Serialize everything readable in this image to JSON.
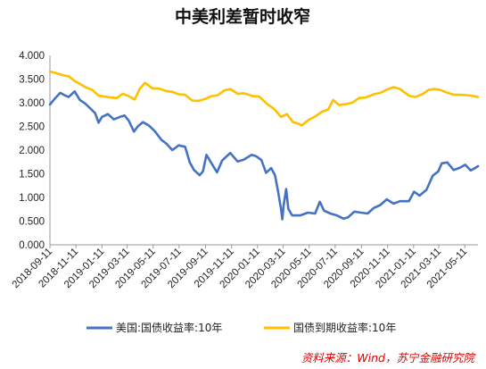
{
  "chart_data": {
    "type": "line",
    "title": "中美利差暂时收窄",
    "xlabel": "",
    "ylabel": "",
    "ylim": [
      0,
      4
    ],
    "yticks": [
      "0.000",
      "0.500",
      "1.000",
      "1.500",
      "2.000",
      "2.500",
      "3.000",
      "3.500",
      "4.000"
    ],
    "xticks": [
      "2018-09-11",
      "2018-11-11",
      "2019-01-11",
      "2019-03-11",
      "2019-05-11",
      "2019-07-11",
      "2019-09-11",
      "2019-11-11",
      "2020-01-11",
      "2020-03-11",
      "2020-05-11",
      "2020-07-11",
      "2020-09-11",
      "2020-11-11",
      "2021-01-11",
      "2021-03-11",
      "2021-05-11"
    ],
    "grid": false,
    "legend_position": "bottom",
    "series": [
      {
        "name": "美国:国债收益率:10年",
        "color": "#4472c4",
        "points": [
          [
            "2018-09-11",
            2.96
          ],
          [
            "2018-09-20",
            3.06
          ],
          [
            "2018-10-05",
            3.21
          ],
          [
            "2018-10-15",
            3.16
          ],
          [
            "2018-10-25",
            3.12
          ],
          [
            "2018-11-08",
            3.24
          ],
          [
            "2018-11-20",
            3.06
          ],
          [
            "2018-12-03",
            2.98
          ],
          [
            "2018-12-15",
            2.88
          ],
          [
            "2018-12-26",
            2.78
          ],
          [
            "2019-01-03",
            2.58
          ],
          [
            "2019-01-11",
            2.7
          ],
          [
            "2019-01-25",
            2.76
          ],
          [
            "2019-02-08",
            2.65
          ],
          [
            "2019-02-22",
            2.7
          ],
          [
            "2019-03-05",
            2.73
          ],
          [
            "2019-03-15",
            2.62
          ],
          [
            "2019-03-27",
            2.39
          ],
          [
            "2019-04-05",
            2.5
          ],
          [
            "2019-04-17",
            2.59
          ],
          [
            "2019-05-01",
            2.52
          ],
          [
            "2019-05-15",
            2.4
          ],
          [
            "2019-05-30",
            2.22
          ],
          [
            "2019-06-12",
            2.13
          ],
          [
            "2019-06-25",
            2.0
          ],
          [
            "2019-07-10",
            2.1
          ],
          [
            "2019-07-25",
            2.07
          ],
          [
            "2019-08-05",
            1.74
          ],
          [
            "2019-08-15",
            1.58
          ],
          [
            "2019-08-28",
            1.47
          ],
          [
            "2019-09-05",
            1.55
          ],
          [
            "2019-09-13",
            1.9
          ],
          [
            "2019-09-25",
            1.72
          ],
          [
            "2019-10-08",
            1.53
          ],
          [
            "2019-10-20",
            1.78
          ],
          [
            "2019-11-08",
            1.94
          ],
          [
            "2019-11-25",
            1.76
          ],
          [
            "2019-12-10",
            1.8
          ],
          [
            "2019-12-28",
            1.9
          ],
          [
            "2020-01-08",
            1.87
          ],
          [
            "2020-01-20",
            1.79
          ],
          [
            "2020-01-31",
            1.52
          ],
          [
            "2020-02-12",
            1.62
          ],
          [
            "2020-02-21",
            1.47
          ],
          [
            "2020-02-28",
            1.13
          ],
          [
            "2020-03-06",
            0.76
          ],
          [
            "2020-03-09",
            0.54
          ],
          [
            "2020-03-12",
            0.82
          ],
          [
            "2020-03-18",
            1.18
          ],
          [
            "2020-03-23",
            0.76
          ],
          [
            "2020-04-01",
            0.62
          ],
          [
            "2020-04-20",
            0.62
          ],
          [
            "2020-05-08",
            0.68
          ],
          [
            "2020-05-25",
            0.66
          ],
          [
            "2020-06-05",
            0.91
          ],
          [
            "2020-06-15",
            0.72
          ],
          [
            "2020-06-30",
            0.66
          ],
          [
            "2020-07-15",
            0.62
          ],
          [
            "2020-07-31",
            0.55
          ],
          [
            "2020-08-10",
            0.58
          ],
          [
            "2020-08-25",
            0.7
          ],
          [
            "2020-09-10",
            0.68
          ],
          [
            "2020-09-25",
            0.66
          ],
          [
            "2020-10-10",
            0.78
          ],
          [
            "2020-10-25",
            0.84
          ],
          [
            "2020-11-09",
            0.96
          ],
          [
            "2020-11-25",
            0.87
          ],
          [
            "2020-12-10",
            0.92
          ],
          [
            "2020-12-31",
            0.92
          ],
          [
            "2021-01-12",
            1.12
          ],
          [
            "2021-01-25",
            1.04
          ],
          [
            "2021-02-10",
            1.16
          ],
          [
            "2021-02-25",
            1.46
          ],
          [
            "2021-03-10",
            1.55
          ],
          [
            "2021-03-18",
            1.72
          ],
          [
            "2021-03-31",
            1.74
          ],
          [
            "2021-04-15",
            1.58
          ],
          [
            "2021-04-30",
            1.63
          ],
          [
            "2021-05-12",
            1.69
          ],
          [
            "2021-05-25",
            1.57
          ],
          [
            "2021-06-04",
            1.62
          ],
          [
            "2021-06-11",
            1.66
          ]
        ]
      },
      {
        "name": "国债到期收益率:10年",
        "color": "#ffc000",
        "points": [
          [
            "2018-09-11",
            3.66
          ],
          [
            "2018-09-28",
            3.62
          ],
          [
            "2018-10-12",
            3.58
          ],
          [
            "2018-10-25",
            3.56
          ],
          [
            "2018-11-08",
            3.46
          ],
          [
            "2018-11-20",
            3.4
          ],
          [
            "2018-12-05",
            3.32
          ],
          [
            "2018-12-20",
            3.27
          ],
          [
            "2019-01-03",
            3.15
          ],
          [
            "2019-01-18",
            3.13
          ],
          [
            "2019-02-01",
            3.11
          ],
          [
            "2019-02-15",
            3.1
          ],
          [
            "2019-03-01",
            3.19
          ],
          [
            "2019-03-15",
            3.14
          ],
          [
            "2019-03-29",
            3.07
          ],
          [
            "2019-04-10",
            3.3
          ],
          [
            "2019-04-22",
            3.42
          ],
          [
            "2019-05-10",
            3.3
          ],
          [
            "2019-05-25",
            3.3
          ],
          [
            "2019-06-10",
            3.25
          ],
          [
            "2019-06-25",
            3.23
          ],
          [
            "2019-07-10",
            3.18
          ],
          [
            "2019-07-25",
            3.17
          ],
          [
            "2019-08-10",
            3.05
          ],
          [
            "2019-08-25",
            3.04
          ],
          [
            "2019-09-10",
            3.08
          ],
          [
            "2019-09-25",
            3.14
          ],
          [
            "2019-10-10",
            3.16
          ],
          [
            "2019-10-25",
            3.26
          ],
          [
            "2019-11-08",
            3.29
          ],
          [
            "2019-11-25",
            3.19
          ],
          [
            "2019-12-10",
            3.2
          ],
          [
            "2019-12-31",
            3.14
          ],
          [
            "2020-01-15",
            3.13
          ],
          [
            "2020-02-03",
            2.97
          ],
          [
            "2020-02-20",
            2.86
          ],
          [
            "2020-03-06",
            2.7
          ],
          [
            "2020-03-20",
            2.76
          ],
          [
            "2020-04-03",
            2.59
          ],
          [
            "2020-04-15",
            2.56
          ],
          [
            "2020-04-24",
            2.52
          ],
          [
            "2020-05-10",
            2.64
          ],
          [
            "2020-05-25",
            2.71
          ],
          [
            "2020-06-10",
            2.81
          ],
          [
            "2020-06-25",
            2.86
          ],
          [
            "2020-07-06",
            3.06
          ],
          [
            "2020-07-20",
            2.95
          ],
          [
            "2020-08-05",
            2.97
          ],
          [
            "2020-08-20",
            3.0
          ],
          [
            "2020-09-05",
            3.1
          ],
          [
            "2020-09-20",
            3.11
          ],
          [
            "2020-10-10",
            3.18
          ],
          [
            "2020-10-25",
            3.21
          ],
          [
            "2020-11-10",
            3.28
          ],
          [
            "2020-11-25",
            3.33
          ],
          [
            "2020-12-10",
            3.29
          ],
          [
            "2020-12-31",
            3.15
          ],
          [
            "2021-01-15",
            3.12
          ],
          [
            "2021-01-31",
            3.18
          ],
          [
            "2021-02-15",
            3.27
          ],
          [
            "2021-03-01",
            3.29
          ],
          [
            "2021-03-15",
            3.27
          ],
          [
            "2021-04-01",
            3.21
          ],
          [
            "2021-04-15",
            3.17
          ],
          [
            "2021-05-01",
            3.17
          ],
          [
            "2021-05-15",
            3.16
          ],
          [
            "2021-06-01",
            3.14
          ],
          [
            "2021-06-11",
            3.12
          ]
        ]
      }
    ]
  },
  "source_note": "资料来源：Wind，苏宁金融研究院"
}
